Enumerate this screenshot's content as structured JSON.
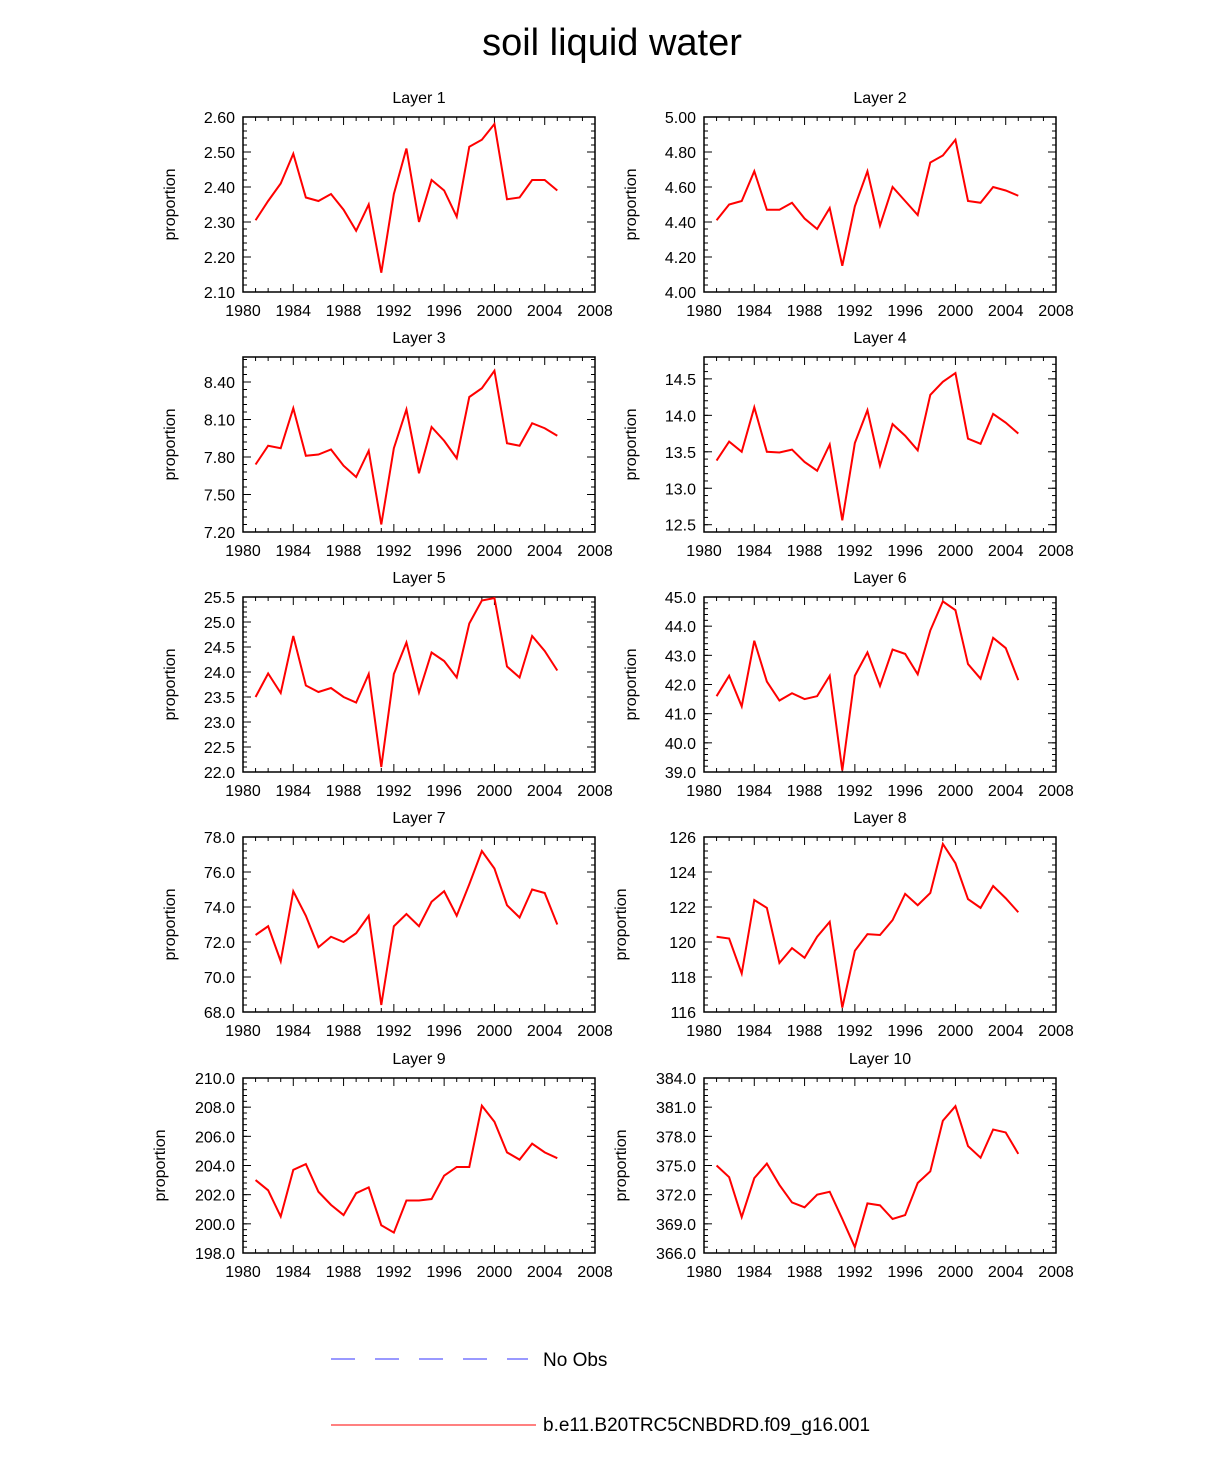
{
  "title": "soil liquid water",
  "colors": {
    "model": "#ff0000",
    "obs": "#3333ff",
    "axis": "#000000"
  },
  "legend": [
    {
      "label": "No Obs",
      "style": "dashed",
      "color": "#3333ff"
    },
    {
      "label": "b.e11.B20TRC5CNBDRD.f09_g16.001",
      "style": "solid",
      "color": "#ff0000"
    }
  ],
  "chart_data": [
    {
      "type": "line",
      "title": "Layer 1",
      "xlabel": "",
      "ylabel": "proportion",
      "xlim": [
        1980,
        2008
      ],
      "xticks": [
        1980,
        1984,
        1988,
        1992,
        1996,
        2000,
        2004,
        2008
      ],
      "ylim": [
        2.1,
        2.6
      ],
      "yticks": [
        2.1,
        2.2,
        2.3,
        2.4,
        2.5,
        2.6
      ],
      "ydec": 2,
      "x": [
        1981,
        1982,
        1983,
        1984,
        1985,
        1986,
        1987,
        1988,
        1989,
        1990,
        1991,
        1992,
        1993,
        1994,
        1995,
        1996,
        1997,
        1998,
        1999,
        2000,
        2001,
        2002,
        2003,
        2004,
        2005
      ],
      "series": [
        {
          "name": "b.e11.B20TRC5CNBDRD.f09_g16.001",
          "values": [
            2.305,
            2.36,
            2.41,
            2.495,
            2.37,
            2.36,
            2.38,
            2.335,
            2.275,
            2.35,
            2.155,
            2.38,
            2.51,
            2.3,
            2.42,
            2.39,
            2.315,
            2.515,
            2.535,
            2.58,
            2.365,
            2.37,
            2.42,
            2.42,
            2.39
          ]
        }
      ]
    },
    {
      "type": "line",
      "title": "Layer 2",
      "xlabel": "",
      "ylabel": "proportion",
      "xlim": [
        1980,
        2008
      ],
      "xticks": [
        1980,
        1984,
        1988,
        1992,
        1996,
        2000,
        2004,
        2008
      ],
      "ylim": [
        4.0,
        5.0
      ],
      "yticks": [
        4.0,
        4.2,
        4.4,
        4.6,
        4.8,
        5.0
      ],
      "ydec": 2,
      "x": [
        1981,
        1982,
        1983,
        1984,
        1985,
        1986,
        1987,
        1988,
        1989,
        1990,
        1991,
        1992,
        1993,
        1994,
        1995,
        1996,
        1997,
        1998,
        1999,
        2000,
        2001,
        2002,
        2003,
        2004,
        2005
      ],
      "series": [
        {
          "name": "b.e11.B20TRC5CNBDRD.f09_g16.001",
          "values": [
            4.41,
            4.5,
            4.52,
            4.69,
            4.47,
            4.47,
            4.51,
            4.42,
            4.36,
            4.48,
            4.15,
            4.49,
            4.69,
            4.38,
            4.6,
            4.52,
            4.44,
            4.74,
            4.78,
            4.87,
            4.52,
            4.51,
            4.6,
            4.58,
            4.55
          ]
        }
      ]
    },
    {
      "type": "line",
      "title": "Layer 3",
      "xlabel": "",
      "ylabel": "proportion",
      "xlim": [
        1980,
        2008
      ],
      "xticks": [
        1980,
        1984,
        1988,
        1992,
        1996,
        2000,
        2004,
        2008
      ],
      "ylim": [
        7.2,
        8.6
      ],
      "yticks": [
        7.2,
        7.5,
        7.8,
        8.1,
        8.4
      ],
      "ydec": 2,
      "x": [
        1981,
        1982,
        1983,
        1984,
        1985,
        1986,
        1987,
        1988,
        1989,
        1990,
        1991,
        1992,
        1993,
        1994,
        1995,
        1996,
        1997,
        1998,
        1999,
        2000,
        2001,
        2002,
        2003,
        2004,
        2005
      ],
      "series": [
        {
          "name": "b.e11.B20TRC5CNBDRD.f09_g16.001",
          "values": [
            7.74,
            7.89,
            7.87,
            8.19,
            7.81,
            7.82,
            7.86,
            7.73,
            7.64,
            7.85,
            7.26,
            7.87,
            8.18,
            7.67,
            8.04,
            7.93,
            7.79,
            8.28,
            8.35,
            8.49,
            7.91,
            7.89,
            8.07,
            8.03,
            7.97
          ]
        }
      ]
    },
    {
      "type": "line",
      "title": "Layer 4",
      "xlabel": "",
      "ylabel": "proportion",
      "xlim": [
        1980,
        2008
      ],
      "xticks": [
        1980,
        1984,
        1988,
        1992,
        1996,
        2000,
        2004,
        2008
      ],
      "ylim": [
        12.4,
        14.8
      ],
      "yticks": [
        12.5,
        13.0,
        13.5,
        14.0,
        14.5
      ],
      "ydec": 1,
      "x": [
        1981,
        1982,
        1983,
        1984,
        1985,
        1986,
        1987,
        1988,
        1989,
        1990,
        1991,
        1992,
        1993,
        1994,
        1995,
        1996,
        1997,
        1998,
        1999,
        2000,
        2001,
        2002,
        2003,
        2004,
        2005
      ],
      "series": [
        {
          "name": "b.e11.B20TRC5CNBDRD.f09_g16.001",
          "values": [
            13.38,
            13.64,
            13.5,
            14.11,
            13.5,
            13.49,
            13.53,
            13.36,
            13.24,
            13.6,
            12.56,
            13.62,
            14.07,
            13.31,
            13.88,
            13.72,
            13.52,
            14.28,
            14.46,
            14.58,
            13.68,
            13.61,
            14.02,
            13.9,
            13.75
          ]
        }
      ]
    },
    {
      "type": "line",
      "title": "Layer 5",
      "xlabel": "",
      "ylabel": "proportion",
      "xlim": [
        1980,
        2008
      ],
      "xticks": [
        1980,
        1984,
        1988,
        1992,
        1996,
        2000,
        2004,
        2008
      ],
      "ylim": [
        22.0,
        25.5
      ],
      "yticks": [
        22.0,
        22.5,
        23.0,
        23.5,
        24.0,
        24.5,
        25.0,
        25.5
      ],
      "ydec": 1,
      "x": [
        1981,
        1982,
        1983,
        1984,
        1985,
        1986,
        1987,
        1988,
        1989,
        1990,
        1991,
        1992,
        1993,
        1994,
        1995,
        1996,
        1997,
        1998,
        1999,
        2000,
        2001,
        2002,
        2003,
        2004,
        2005
      ],
      "series": [
        {
          "name": "b.e11.B20TRC5CNBDRD.f09_g16.001",
          "values": [
            23.5,
            23.97,
            23.58,
            24.72,
            23.73,
            23.6,
            23.68,
            23.5,
            23.39,
            23.96,
            22.1,
            23.96,
            24.59,
            23.59,
            24.39,
            24.22,
            23.89,
            24.97,
            25.43,
            25.48,
            24.11,
            23.89,
            24.72,
            24.42,
            24.03
          ]
        }
      ]
    },
    {
      "type": "line",
      "title": "Layer 6",
      "xlabel": "",
      "ylabel": "proportion",
      "xlim": [
        1980,
        2008
      ],
      "xticks": [
        1980,
        1984,
        1988,
        1992,
        1996,
        2000,
        2004,
        2008
      ],
      "ylim": [
        39.0,
        45.0
      ],
      "yticks": [
        39.0,
        40.0,
        41.0,
        42.0,
        43.0,
        44.0,
        45.0
      ],
      "ydec": 1,
      "x": [
        1981,
        1982,
        1983,
        1984,
        1985,
        1986,
        1987,
        1988,
        1989,
        1990,
        1991,
        1992,
        1993,
        1994,
        1995,
        1996,
        1997,
        1998,
        1999,
        2000,
        2001,
        2002,
        2003,
        2004,
        2005
      ],
      "series": [
        {
          "name": "b.e11.B20TRC5CNBDRD.f09_g16.001",
          "values": [
            41.6,
            42.3,
            41.25,
            43.5,
            42.1,
            41.45,
            41.7,
            41.5,
            41.6,
            42.3,
            39.05,
            42.3,
            43.1,
            41.95,
            43.2,
            43.05,
            42.35,
            43.85,
            44.85,
            44.55,
            42.7,
            42.2,
            43.6,
            43.25,
            42.15
          ]
        }
      ]
    },
    {
      "type": "line",
      "title": "Layer 7",
      "xlabel": "",
      "ylabel": "proportion",
      "xlim": [
        1980,
        2008
      ],
      "xticks": [
        1980,
        1984,
        1988,
        1992,
        1996,
        2000,
        2004,
        2008
      ],
      "ylim": [
        68.0,
        78.0
      ],
      "yticks": [
        68.0,
        70.0,
        72.0,
        74.0,
        76.0,
        78.0
      ],
      "ydec": 1,
      "x": [
        1981,
        1982,
        1983,
        1984,
        1985,
        1986,
        1987,
        1988,
        1989,
        1990,
        1991,
        1992,
        1993,
        1994,
        1995,
        1996,
        1997,
        1998,
        1999,
        2000,
        2001,
        2002,
        2003,
        2004,
        2005
      ],
      "series": [
        {
          "name": "b.e11.B20TRC5CNBDRD.f09_g16.001",
          "values": [
            72.4,
            72.9,
            70.9,
            74.9,
            73.5,
            71.7,
            72.3,
            72.0,
            72.5,
            73.5,
            68.4,
            72.9,
            73.6,
            72.9,
            74.3,
            74.9,
            73.5,
            75.3,
            77.2,
            76.2,
            74.1,
            73.4,
            75.0,
            74.8,
            73.0
          ]
        }
      ]
    },
    {
      "type": "line",
      "title": "Layer 8",
      "xlabel": "",
      "ylabel": "proportion",
      "xlim": [
        1980,
        2008
      ],
      "xticks": [
        1980,
        1984,
        1988,
        1992,
        1996,
        2000,
        2004,
        2008
      ],
      "ylim": [
        116,
        126
      ],
      "yticks": [
        116,
        118,
        120,
        122,
        124,
        126
      ],
      "ydec": 0,
      "x": [
        1981,
        1982,
        1983,
        1984,
        1985,
        1986,
        1987,
        1988,
        1989,
        1990,
        1991,
        1992,
        1993,
        1994,
        1995,
        1996,
        1997,
        1998,
        1999,
        2000,
        2001,
        2002,
        2003,
        2004,
        2005
      ],
      "series": [
        {
          "name": "b.e11.B20TRC5CNBDRD.f09_g16.001",
          "values": [
            120.3,
            120.2,
            118.2,
            122.4,
            121.95,
            118.8,
            119.65,
            119.1,
            120.3,
            121.15,
            116.25,
            119.5,
            120.45,
            120.4,
            121.25,
            122.75,
            122.1,
            122.8,
            125.6,
            124.5,
            122.45,
            121.95,
            123.2,
            122.5,
            121.7
          ]
        }
      ]
    },
    {
      "type": "line",
      "title": "Layer 9",
      "xlabel": "",
      "ylabel": "proportion",
      "xlim": [
        1980,
        2008
      ],
      "xticks": [
        1980,
        1984,
        1988,
        1992,
        1996,
        2000,
        2004,
        2008
      ],
      "ylim": [
        198.0,
        210.0
      ],
      "yticks": [
        198.0,
        200.0,
        202.0,
        204.0,
        206.0,
        208.0,
        210.0
      ],
      "ydec": 1,
      "x": [
        1981,
        1982,
        1983,
        1984,
        1985,
        1986,
        1987,
        1988,
        1989,
        1990,
        1991,
        1992,
        1993,
        1994,
        1995,
        1996,
        1997,
        1998,
        1999,
        2000,
        2001,
        2002,
        2003,
        2004,
        2005
      ],
      "series": [
        {
          "name": "b.e11.B20TRC5CNBDRD.f09_g16.001",
          "values": [
            203.0,
            202.3,
            200.5,
            203.7,
            204.1,
            202.2,
            201.3,
            200.6,
            202.1,
            202.5,
            199.9,
            199.4,
            201.6,
            201.6,
            201.7,
            203.3,
            203.9,
            203.9,
            208.1,
            207.0,
            204.9,
            204.4,
            205.5,
            204.9,
            204.5
          ]
        }
      ]
    },
    {
      "type": "line",
      "title": "Layer 10",
      "xlabel": "",
      "ylabel": "proportion",
      "xlim": [
        1980,
        2008
      ],
      "xticks": [
        1980,
        1984,
        1988,
        1992,
        1996,
        2000,
        2004,
        2008
      ],
      "ylim": [
        366.0,
        384.0
      ],
      "yticks": [
        366.0,
        369.0,
        372.0,
        375.0,
        378.0,
        381.0,
        384.0
      ],
      "ydec": 1,
      "x": [
        1981,
        1982,
        1983,
        1984,
        1985,
        1986,
        1987,
        1988,
        1989,
        1990,
        1991,
        1992,
        1993,
        1994,
        1995,
        1996,
        1997,
        1998,
        1999,
        2000,
        2001,
        2002,
        2003,
        2004,
        2005
      ],
      "series": [
        {
          "name": "b.e11.B20TRC5CNBDRD.f09_g16.001",
          "values": [
            375.0,
            373.8,
            369.7,
            373.7,
            375.2,
            373.0,
            371.2,
            370.7,
            372.0,
            372.3,
            369.5,
            366.6,
            371.1,
            370.9,
            369.5,
            369.9,
            373.2,
            374.4,
            379.6,
            381.1,
            377.0,
            375.8,
            378.7,
            378.4,
            376.2
          ]
        }
      ]
    }
  ]
}
